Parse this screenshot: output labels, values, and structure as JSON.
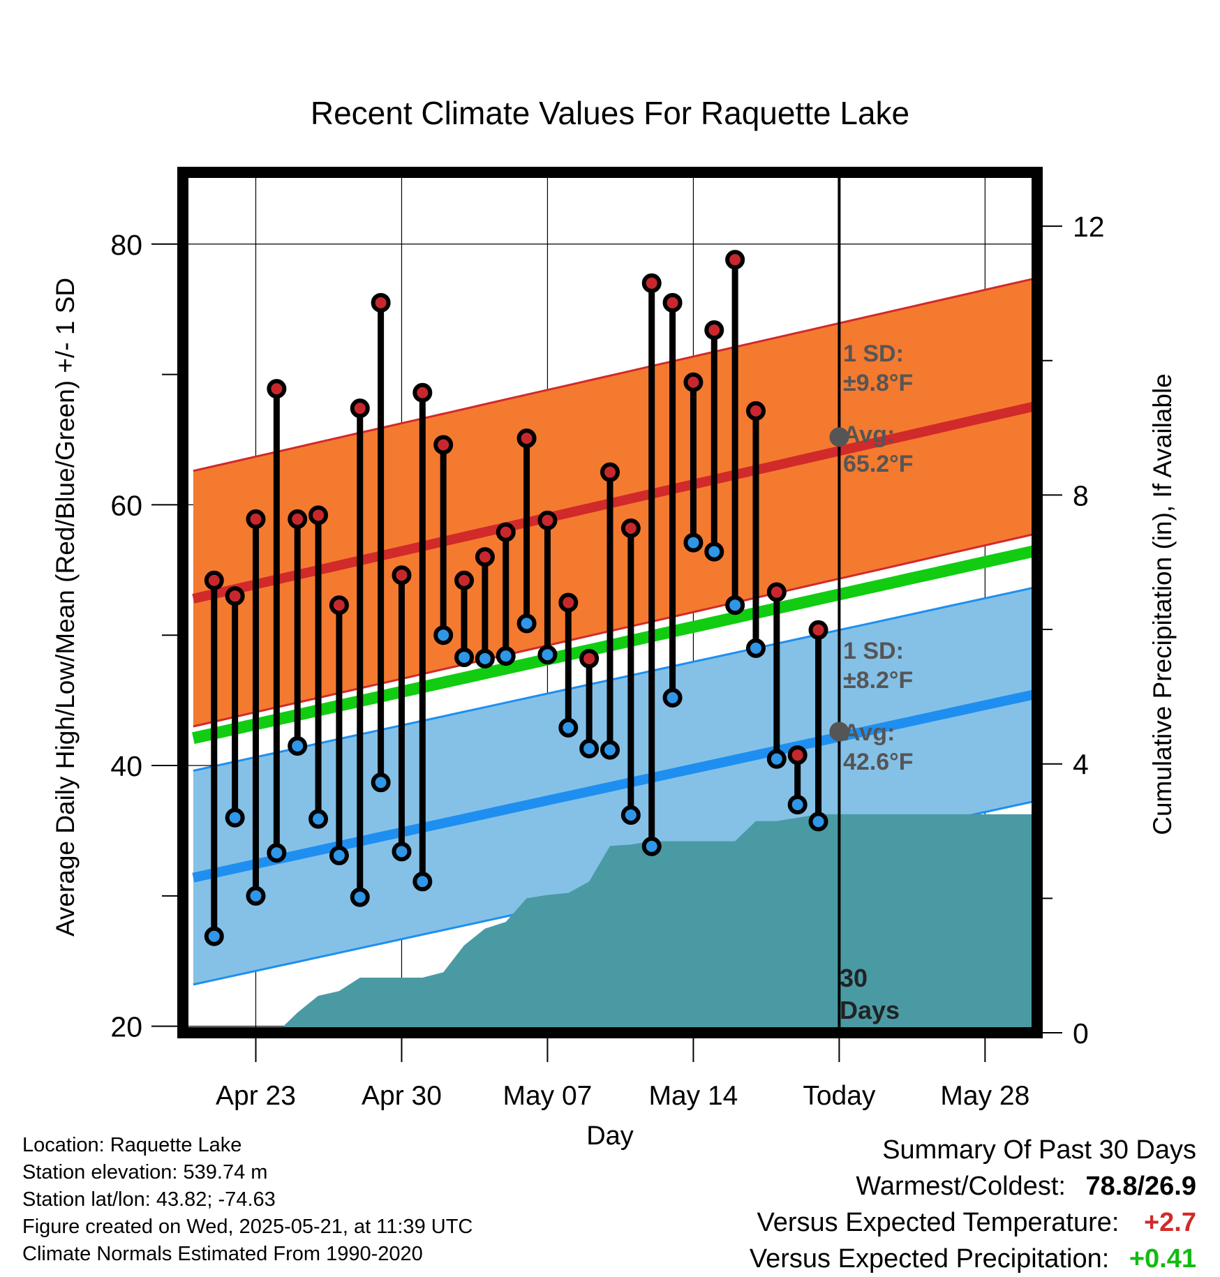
{
  "title": "Recent Climate Values For Raquette Lake",
  "y_label_left": "Average Daily High/Low/Mean (Red/Blue/Green) +/- 1 SD",
  "y_label_right": "Cumulative Precipitation (in), If Available",
  "x_label": "Day",
  "annotations": {
    "high_sd_line1": "1 SD:",
    "high_sd_line2": "±9.8°F",
    "high_avg_line1": "Avg:",
    "high_avg_line2": "65.2°F",
    "low_sd_line1": "1 SD:",
    "low_sd_line2": "±8.2°F",
    "low_avg_line1": "Avg:",
    "low_avg_line2": "42.6°F",
    "days_line1": "30",
    "days_line2": "Days"
  },
  "footer": {
    "location": "Location: Raquette Lake",
    "elevation": "Station elevation: 539.74 m",
    "latlon": "Station lat/lon: 43.82; -74.63",
    "created": "Figure created on Wed, 2025-05-21, at 11:39 UTC",
    "normals": "Climate Normals Estimated From 1990-2020"
  },
  "summary": {
    "heading": "Summary Of Past 30 Days",
    "warm_cold_label": "Warmest/Coldest:",
    "warm_cold_value": "78.8/26.9",
    "temp_label": "Versus Expected Temperature:",
    "temp_value": "+2.7",
    "precip_label": "Versus Expected Precipitation:",
    "precip_value": "+0.41"
  },
  "colors": {
    "high_band": "#f47a30",
    "high_line": "#d12a2a",
    "low_band": "#85c1e7",
    "low_line": "#1e8ff0",
    "mean_line": "#11cc11",
    "precip_fill": "#4a9aa4",
    "high_marker": "#c8282d",
    "low_marker": "#2f96e8",
    "temp_delta": "#d12a2a",
    "precip_delta": "#11bb11"
  },
  "chart_data": {
    "type": "line",
    "x_unit": "day",
    "x_ticks": [
      {
        "day": 3,
        "label": "Apr 23"
      },
      {
        "day": 10,
        "label": "Apr 30"
      },
      {
        "day": 17,
        "label": "May 07"
      },
      {
        "day": 24,
        "label": "May 14"
      },
      {
        "day": 31,
        "label": "Today"
      },
      {
        "day": 38,
        "label": "May 28"
      }
    ],
    "xlim": [
      -0.5,
      40.5
    ],
    "ylim_left": [
      19.5,
      85.5
    ],
    "yticks_left": [
      20,
      40,
      60,
      80
    ],
    "ylim_right": [
      0,
      12.8
    ],
    "yticks_right": [
      0,
      4,
      8,
      12
    ],
    "today_day": 31,
    "daily_highs": [
      54.2,
      53.0,
      58.9,
      68.9,
      58.9,
      59.2,
      52.3,
      67.4,
      75.5,
      54.6,
      68.6,
      64.6,
      54.2,
      56.0,
      57.9,
      65.1,
      58.8,
      52.5,
      48.2,
      62.5,
      58.2,
      77.0,
      75.5,
      69.4,
      73.4,
      78.8,
      67.2,
      53.3,
      40.8,
      50.4
    ],
    "daily_lows": [
      26.9,
      36.0,
      30.0,
      33.3,
      41.5,
      35.9,
      33.1,
      29.9,
      38.7,
      33.4,
      31.1,
      50.0,
      48.3,
      48.2,
      48.4,
      50.9,
      48.5,
      42.9,
      41.3,
      41.2,
      36.2,
      33.8,
      45.2,
      57.1,
      56.4,
      52.3,
      49.0,
      40.5,
      37.0,
      35.7
    ],
    "normal_high": {
      "day": [
        0,
        40.5
      ],
      "values": [
        52.8,
        67.6
      ],
      "note": "approximate trend"
    },
    "normal_high_sd": 9.8,
    "normal_low": {
      "day": [
        0,
        40.5
      ],
      "values": [
        31.4,
        45.5
      ]
    },
    "normal_low_sd": 8.2,
    "normal_mean": {
      "day": [
        0,
        40.5
      ],
      "values": [
        42.1,
        56.5
      ]
    },
    "avg_high_today": 65.2,
    "avg_low_today": 42.6,
    "cumulative_precip": {
      "day": [
        0,
        3,
        4,
        5,
        6,
        7,
        8,
        9,
        10,
        11,
        12,
        13,
        14,
        15,
        16,
        17,
        18,
        19,
        20,
        21,
        22,
        23,
        24,
        25,
        26,
        27,
        28,
        29,
        30,
        31,
        40.5
      ],
      "values": [
        0,
        0,
        0,
        0.3,
        0.55,
        0.62,
        0.82,
        0.82,
        0.82,
        0.82,
        0.9,
        1.3,
        1.55,
        1.65,
        2.0,
        2.05,
        2.08,
        2.25,
        2.78,
        2.8,
        2.85,
        2.85,
        2.85,
        2.85,
        2.85,
        3.15,
        3.15,
        3.2,
        3.25,
        3.25,
        3.25
      ]
    }
  }
}
